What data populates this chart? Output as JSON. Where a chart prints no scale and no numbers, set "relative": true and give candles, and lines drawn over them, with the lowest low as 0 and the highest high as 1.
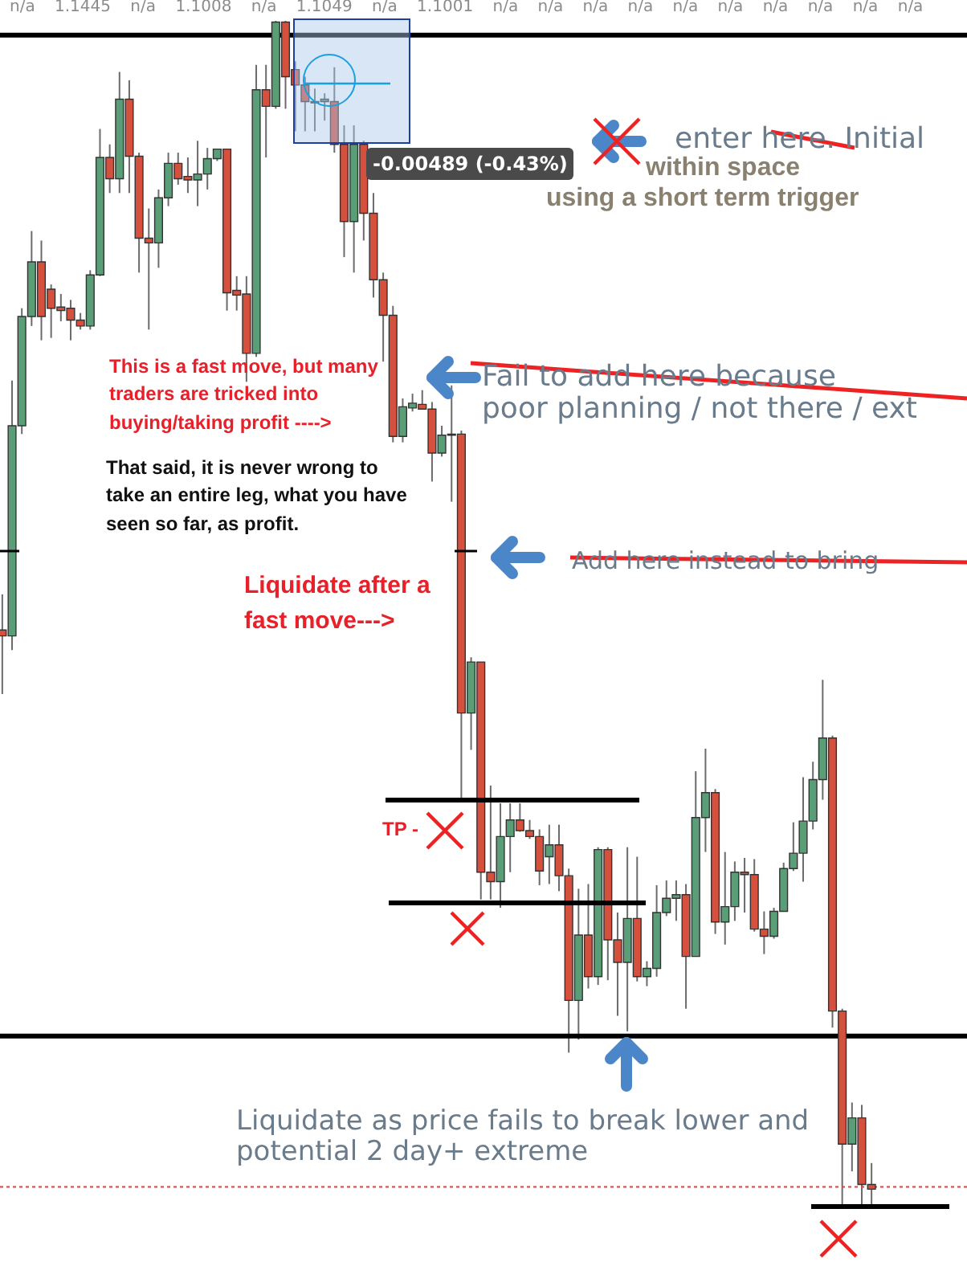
{
  "chart_data": {
    "type": "candlestick",
    "relative": true,
    "categories": [
      null,
      null,
      null,
      null,
      null,
      null,
      null,
      null,
      null,
      null,
      null,
      null,
      null,
      null,
      null,
      null,
      null,
      null,
      null,
      null,
      null,
      null,
      null,
      null,
      null,
      null,
      null,
      null,
      null,
      null,
      null,
      null,
      null,
      null,
      null,
      null,
      null,
      null,
      null,
      null,
      null,
      null,
      null,
      null,
      null,
      null,
      null,
      null,
      null,
      null,
      null,
      null,
      null,
      null,
      null,
      null,
      null,
      null,
      null,
      null,
      null,
      null,
      null,
      null,
      null,
      null,
      null,
      null,
      null,
      null,
      null,
      null,
      null,
      null,
      null,
      null,
      null,
      null,
      null,
      null,
      null,
      null,
      null,
      null,
      null,
      null,
      null,
      null,
      null,
      null
    ],
    "ohlc": [
      [
        0.487,
        0.517,
        0.433,
        0.482
      ],
      [
        0.482,
        0.697,
        0.47,
        0.659
      ],
      [
        0.659,
        0.758,
        0.652,
        0.751
      ],
      [
        0.751,
        0.823,
        0.743,
        0.797
      ],
      [
        0.797,
        0.815,
        0.731,
        0.751
      ],
      [
        0.774,
        0.778,
        0.733,
        0.758
      ],
      [
        0.759,
        0.77,
        0.747,
        0.756
      ],
      [
        0.758,
        0.765,
        0.731,
        0.748
      ],
      [
        0.748,
        0.754,
        0.74,
        0.743
      ],
      [
        0.743,
        0.79,
        0.74,
        0.786
      ],
      [
        0.786,
        0.909,
        0.785,
        0.885
      ],
      [
        0.885,
        0.896,
        0.855,
        0.867
      ],
      [
        0.867,
        0.957,
        0.855,
        0.934
      ],
      [
        0.934,
        0.95,
        0.855,
        0.886
      ],
      [
        0.886,
        0.889,
        0.788,
        0.817
      ],
      [
        0.817,
        0.842,
        0.74,
        0.813
      ],
      [
        0.813,
        0.858,
        0.792,
        0.851
      ],
      [
        0.851,
        0.889,
        0.844,
        0.88
      ],
      [
        0.88,
        0.889,
        0.862,
        0.867
      ],
      [
        0.869,
        0.885,
        0.855,
        0.866
      ],
      [
        0.866,
        0.899,
        0.844,
        0.871
      ],
      [
        0.871,
        0.893,
        0.858,
        0.884
      ],
      [
        0.884,
        0.892,
        0.882,
        0.892
      ],
      [
        0.892,
        0.892,
        0.756,
        0.771
      ],
      [
        0.773,
        0.785,
        0.756,
        0.769
      ],
      [
        0.77,
        0.785,
        0.696,
        0.72
      ],
      [
        0.72,
        0.963,
        0.717,
        0.942
      ],
      [
        0.942,
        0.963,
        0.885,
        0.928
      ],
      [
        0.928,
        1.0,
        0.926,
        0.999
      ],
      [
        0.999,
        1.0,
        0.926,
        0.953
      ],
      [
        0.959,
        0.966,
        0.907,
        0.946
      ],
      [
        0.946,
        0.953,
        0.907,
        0.932
      ],
      [
        0.931,
        0.943,
        0.907,
        0.932
      ],
      [
        0.932,
        0.939,
        0.916,
        0.934
      ],
      [
        0.932,
        0.961,
        0.889,
        0.896
      ],
      [
        0.896,
        0.912,
        0.801,
        0.831
      ],
      [
        0.831,
        0.912,
        0.788,
        0.896
      ],
      [
        0.896,
        0.899,
        0.815,
        0.838
      ],
      [
        0.838,
        0.855,
        0.767,
        0.782
      ],
      [
        0.782,
        0.788,
        0.713,
        0.752
      ],
      [
        0.752,
        0.76,
        0.645,
        0.65
      ],
      [
        0.65,
        0.682,
        0.645,
        0.675
      ],
      [
        0.674,
        0.686,
        0.671,
        0.678
      ],
      [
        0.677,
        0.689,
        0.673,
        0.673
      ],
      [
        0.673,
        0.679,
        0.612,
        0.636
      ],
      [
        0.636,
        0.659,
        0.633,
        0.651
      ],
      [
        0.651,
        0.693,
        0.595,
        0.652
      ],
      [
        0.652,
        0.655,
        0.344,
        0.417
      ],
      [
        0.417,
        0.464,
        0.386,
        0.46
      ],
      [
        0.46,
        0.46,
        0.26,
        0.283
      ],
      [
        0.283,
        0.356,
        0.26,
        0.275
      ],
      [
        0.275,
        0.341,
        0.253,
        0.313
      ],
      [
        0.313,
        0.341,
        0.283,
        0.327
      ],
      [
        0.327,
        0.341,
        0.317,
        0.318
      ],
      [
        0.318,
        0.327,
        0.311,
        0.313
      ],
      [
        0.313,
        0.319,
        0.272,
        0.284
      ],
      [
        0.296,
        0.323,
        0.273,
        0.306
      ],
      [
        0.306,
        0.323,
        0.267,
        0.28
      ],
      [
        0.28,
        0.286,
        0.131,
        0.175
      ],
      [
        0.175,
        0.269,
        0.142,
        0.23
      ],
      [
        0.23,
        0.273,
        0.185,
        0.195
      ],
      [
        0.195,
        0.304,
        0.188,
        0.302
      ],
      [
        0.302,
        0.304,
        0.192,
        0.226
      ],
      [
        0.226,
        0.249,
        0.162,
        0.207
      ],
      [
        0.207,
        0.304,
        0.149,
        0.244
      ],
      [
        0.244,
        0.296,
        0.191,
        0.195
      ],
      [
        0.195,
        0.208,
        0.187,
        0.202
      ],
      [
        0.202,
        0.272,
        0.195,
        0.249
      ],
      [
        0.249,
        0.276,
        0.246,
        0.261
      ],
      [
        0.261,
        0.276,
        0.242,
        0.264
      ],
      [
        0.264,
        0.273,
        0.168,
        0.212
      ],
      [
        0.212,
        0.368,
        0.212,
        0.329
      ],
      [
        0.329,
        0.387,
        0.3,
        0.35
      ],
      [
        0.35,
        0.353,
        0.231,
        0.241
      ],
      [
        0.241,
        0.3,
        0.222,
        0.254
      ],
      [
        0.254,
        0.292,
        0.242,
        0.283
      ],
      [
        0.283,
        0.295,
        0.249,
        0.281
      ],
      [
        0.281,
        0.294,
        0.233,
        0.235
      ],
      [
        0.235,
        0.25,
        0.214,
        0.229
      ],
      [
        0.229,
        0.253,
        0.227,
        0.25
      ],
      [
        0.25,
        0.291,
        0.25,
        0.286
      ],
      [
        0.286,
        0.325,
        0.284,
        0.299
      ],
      [
        0.299,
        0.363,
        0.275,
        0.326
      ],
      [
        0.326,
        0.376,
        0.319,
        0.361
      ],
      [
        0.361,
        0.445,
        0.344,
        0.396
      ],
      [
        0.396,
        0.398,
        0.152,
        0.166
      ],
      [
        0.166,
        0.168,
        0.0,
        0.054
      ],
      [
        0.054,
        0.089,
        0.031,
        0.076
      ],
      [
        0.076,
        0.087,
        0.003,
        0.02
      ],
      [
        0.02,
        0.038,
        0.003,
        0.016
      ]
    ],
    "colors": [
      "#d6503e",
      "#5a9e78",
      "#5a9e78",
      "#5a9e78",
      "#d6503e",
      "#d6503e",
      "#d6503e",
      "#d6503e",
      "#d6503e",
      "#5a9e78",
      "#5a9e78",
      "#d6503e",
      "#5a9e78",
      "#d6503e",
      "#d6503e",
      "#d6503e",
      "#5a9e78",
      "#5a9e78",
      "#d6503e",
      "#d6503e",
      "#5a9e78",
      "#5a9e78",
      "#5a9e78",
      "#d6503e",
      "#d6503e",
      "#d6503e",
      "#5a9e78",
      "#d6503e",
      "#5a9e78",
      "#d6503e",
      "#d6503e",
      "#d6503e",
      "#5a9e78",
      "#5a9e78",
      "#d6503e",
      "#d6503e",
      "#5a9e78",
      "#d6503e",
      "#d6503e",
      "#d6503e",
      "#d6503e",
      "#5a9e78",
      "#5a9e78",
      "#d6503e",
      "#d6503e",
      "#5a9e78",
      "#5a9e78",
      "#d6503e",
      "#5a9e78",
      "#d6503e",
      "#d6503e",
      "#5a9e78",
      "#5a9e78",
      "#d6503e",
      "#d6503e",
      "#d6503e",
      "#5a9e78",
      "#d6503e",
      "#d6503e",
      "#5a9e78",
      "#d6503e",
      "#5a9e78",
      "#d6503e",
      "#d6503e",
      "#5a9e78",
      "#d6503e",
      "#5a9e78",
      "#5a9e78",
      "#5a9e78",
      "#5a9e78",
      "#d6503e",
      "#5a9e78",
      "#5a9e78",
      "#d6503e",
      "#5a9e78",
      "#5a9e78",
      "#d6503e",
      "#d6503e",
      "#d6503e",
      "#5a9e78",
      "#5a9e78",
      "#5a9e78",
      "#5a9e78",
      "#5a9e78",
      "#5a9e78",
      "#d6503e",
      "#d6503e",
      "#5a9e78",
      "#d6503e",
      "#d6503e"
    ],
    "ref_lines": [
      {
        "axis": "y",
        "value": 0.988,
        "color": "#000000"
      },
      {
        "axis": "y",
        "value": 0.145,
        "color": "#000000"
      },
      {
        "axis": "y",
        "value": 0.018,
        "color": "#e04040",
        "line_style": "dotted"
      }
    ],
    "annotations": [
      "n/a 1.1445 n/a 1.1008 n/a 1.1049 n/a 1.1001 n/a n/a n/a n/a n/a n/a n/a n/a n/a n/a",
      "-0.00489 (-0.43%)",
      "enter here. Initial",
      "within space",
      "using a short term trigger",
      "Fail to add here because",
      "poor planning / not there / ext",
      "Add here instead to bring",
      "This is a fast move, but many traders are tricked into buying/taking profit ---->",
      "That said, it is never wrong to take an entire leg, what you have seen so far, as profit.",
      "Liquidate after a fast move--->",
      "TP -",
      "Liquidate as price fails to break lower and potential 2 day+ extreme"
    ]
  }
}
